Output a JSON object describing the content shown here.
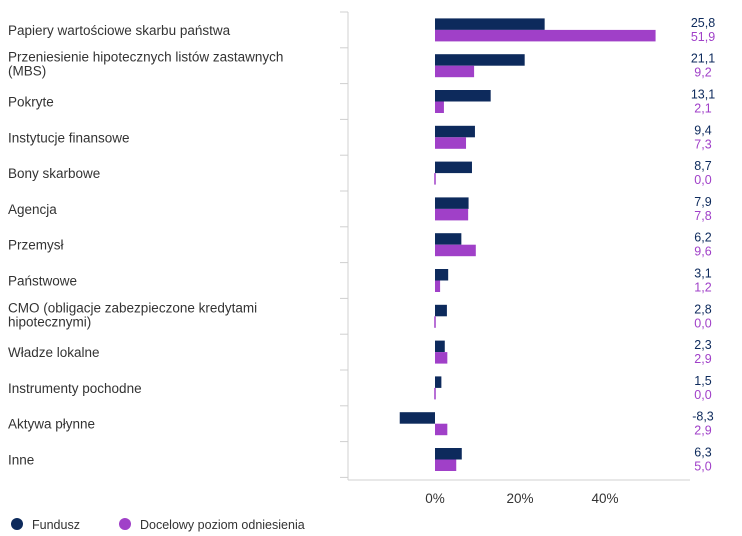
{
  "colors": {
    "fund": "#0d2a5c",
    "benchmark": "#a040c8",
    "grid": "#d0d0d0"
  },
  "chart_data": {
    "type": "bar",
    "orientation": "horizontal",
    "categories": [
      [
        "Papiery wartościowe skarbu państwa"
      ],
      [
        "Przeniesienie hipotecznych listów zastawnych",
        "(MBS)"
      ],
      [
        "Pokryte"
      ],
      [
        "Instytucje finansowe"
      ],
      [
        "Bony skarbowe"
      ],
      [
        "Agencja"
      ],
      [
        "Przemysł"
      ],
      [
        "Państwowe"
      ],
      [
        "CMO (obligacje zabezpieczone kredytami",
        "hipotecznymi)"
      ],
      [
        "Władze lokalne"
      ],
      [
        "Instrumenty pochodne"
      ],
      [
        "Aktywa płynne"
      ],
      [
        "Inne"
      ]
    ],
    "series": [
      {
        "name": "Fundusz",
        "color": "#0d2a5c",
        "values": [
          25.8,
          21.1,
          13.1,
          9.4,
          8.7,
          7.9,
          6.2,
          3.1,
          2.8,
          2.3,
          1.5,
          -8.3,
          6.3
        ],
        "labels": [
          "25,8",
          "21,1",
          "13,1",
          "9,4",
          "8,7",
          "7,9",
          "6,2",
          "3,1",
          "2,8",
          "2,3",
          "1,5",
          "-8,3",
          "6,3"
        ]
      },
      {
        "name": "Docelowy poziom odniesienia",
        "color": "#a040c8",
        "values": [
          51.9,
          9.2,
          2.1,
          7.3,
          0.0,
          7.8,
          9.6,
          1.2,
          0.0,
          2.9,
          0.0,
          2.9,
          5.0
        ],
        "labels": [
          "51,9",
          "9,2",
          "2,1",
          "7,3",
          "0,0",
          "7,8",
          "9,6",
          "1,2",
          "0,0",
          "2,9",
          "0,0",
          "2,9",
          "5,0"
        ]
      }
    ],
    "x_ticks": [
      {
        "value": 0,
        "label": "0%"
      },
      {
        "value": 20,
        "label": "20%"
      },
      {
        "value": 40,
        "label": "40%"
      }
    ],
    "xlim": [
      -20,
      60
    ],
    "grid": false,
    "legend_position": "bottom-left"
  }
}
